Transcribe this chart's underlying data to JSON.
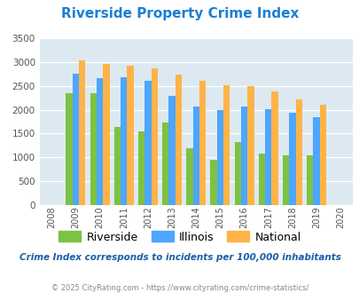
{
  "title": "Riverside Property Crime Index",
  "years": [
    2008,
    2009,
    2010,
    2011,
    2012,
    2013,
    2014,
    2015,
    2016,
    2017,
    2018,
    2019,
    2020
  ],
  "riverside": [
    null,
    2350,
    2350,
    1640,
    1550,
    1730,
    1190,
    940,
    1330,
    1080,
    1040,
    1040,
    null
  ],
  "illinois": [
    null,
    2760,
    2670,
    2680,
    2600,
    2290,
    2060,
    2000,
    2060,
    2010,
    1940,
    1840,
    null
  ],
  "national": [
    null,
    3040,
    2960,
    2920,
    2870,
    2730,
    2610,
    2510,
    2490,
    2380,
    2210,
    2110,
    null
  ],
  "riverside_color": "#7dc242",
  "illinois_color": "#4da6ff",
  "national_color": "#ffb347",
  "bg_color": "#dce9f0",
  "ylim": [
    0,
    3500
  ],
  "yticks": [
    0,
    500,
    1000,
    1500,
    2000,
    2500,
    3000,
    3500
  ],
  "xlabel_note": "Crime Index corresponds to incidents per 100,000 inhabitants",
  "footer": "© 2025 CityRating.com - https://www.cityrating.com/crime-statistics/",
  "legend_labels": [
    "Riverside",
    "Illinois",
    "National"
  ],
  "note_color": "#1a5fa8",
  "footer_color": "#888888"
}
